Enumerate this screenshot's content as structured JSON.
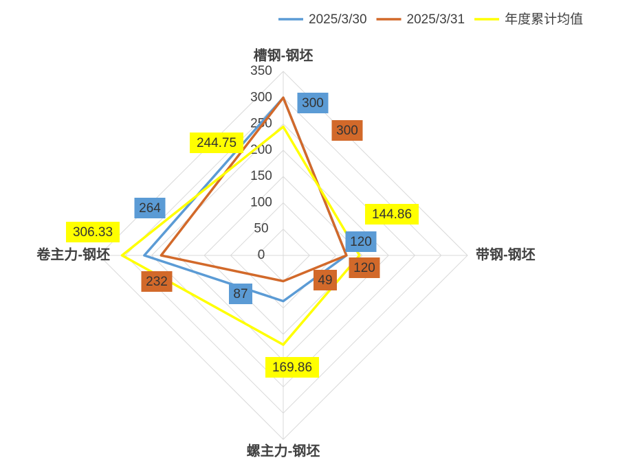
{
  "chart_data": {
    "type": "radar",
    "categories": [
      "槽钢-钢坯",
      "带钢-钢坯",
      "螺主力-钢坯",
      "卷主力-钢坯"
    ],
    "series": [
      {
        "name": "2025/3/30",
        "color": "#5b9bd5",
        "values": [
          300,
          120,
          87,
          264
        ]
      },
      {
        "name": "2025/3/31",
        "color": "#d2692a",
        "values": [
          300,
          120,
          49,
          232
        ]
      },
      {
        "name": "年度累计均值",
        "color": "#ffff00",
        "values": [
          244.75,
          144.86,
          169.86,
          306.33
        ]
      }
    ],
    "ylim": [
      0,
      350
    ],
    "yticks": [
      0,
      50,
      100,
      150,
      200,
      250,
      300,
      350
    ],
    "grid": true,
    "legend": "top"
  }
}
